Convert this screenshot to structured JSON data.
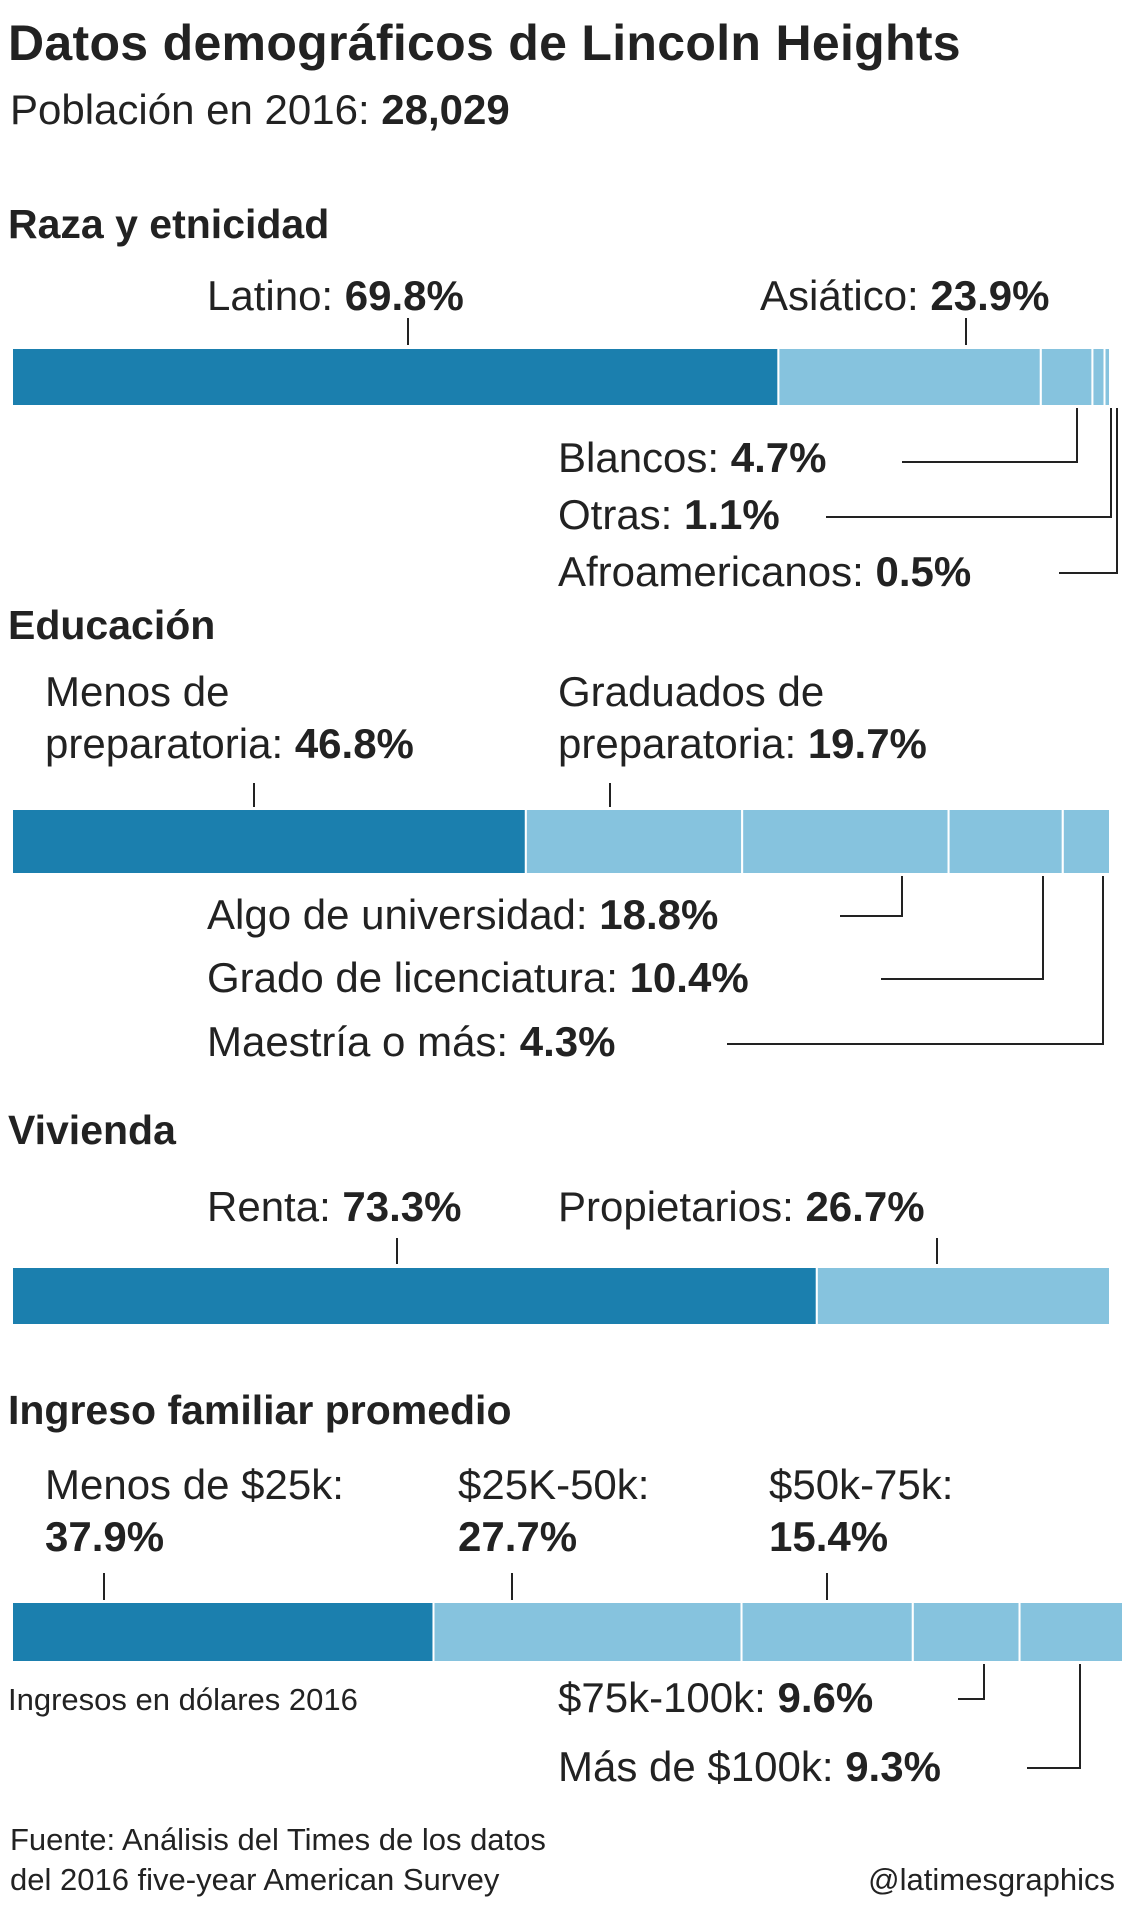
{
  "header": {
    "title": "Datos demográficos de Lincoln Heights",
    "population_label": "Población en 2016:",
    "population_value": "28,029"
  },
  "colors": {
    "primary": "#1b7fae",
    "secondary": "#86c3de",
    "lines": "#222222"
  },
  "chart_data": [
    {
      "type": "bar",
      "stacked": true,
      "title": "Raza y etnicidad",
      "categories": [
        "Latino",
        "Asiático",
        "Blancos",
        "Otras",
        "Afroamericanos"
      ],
      "values": [
        69.8,
        23.9,
        4.7,
        1.1,
        0.5
      ],
      "value_labels": [
        "69.8%",
        "23.9%",
        "4.7%",
        "1.1%",
        "0.5%"
      ]
    },
    {
      "type": "bar",
      "stacked": true,
      "title": "Educación",
      "categories": [
        "Menos de preparatoria",
        "Graduados de preparatoria",
        "Algo de universidad",
        "Grado de licenciatura",
        "Maestría o más"
      ],
      "values": [
        46.8,
        19.7,
        18.8,
        10.4,
        4.3
      ],
      "value_labels": [
        "46.8%",
        "19.7%",
        "18.8%",
        "10.4%",
        "4.3%"
      ]
    },
    {
      "type": "bar",
      "stacked": true,
      "title": "Vivienda",
      "categories": [
        "Renta",
        "Propietarios"
      ],
      "values": [
        73.3,
        26.7
      ],
      "value_labels": [
        "73.3%",
        "26.7%"
      ]
    },
    {
      "type": "bar",
      "stacked": true,
      "title": "Ingreso familiar promedio",
      "note": "Ingresos en dólares 2016",
      "categories": [
        "Menos de $25k",
        "$25K-50k",
        "$50k-75k",
        "$75k-100k",
        "Más de $100k"
      ],
      "values": [
        37.9,
        27.7,
        15.4,
        9.6,
        9.3
      ],
      "value_labels": [
        "37.9%",
        "27.7%",
        "15.4%",
        "9.6%",
        "9.3%"
      ]
    }
  ],
  "labels": {
    "race": {
      "latino": "Latino:",
      "asian": "Asiático:",
      "white": "Blancos:",
      "other": "Otras:",
      "black": "Afroamericanos:"
    },
    "education": {
      "less_hs_1": "Menos de",
      "less_hs_2": "preparatoria:",
      "hs_1": "Graduados de",
      "hs_2": "preparatoria:",
      "some_college": "Algo de universidad:",
      "bachelor": "Grado de licenciatura:",
      "master": "Maestría o más:"
    },
    "housing": {
      "rent": "Renta:",
      "owners": "Propietarios:"
    },
    "income": {
      "lt25": "Menos de $25k:",
      "25_50": "$25K-50k:",
      "50_75": "$50k-75k:",
      "75_100": "$75k-100k:",
      "gt100": "Más de $100k:"
    }
  },
  "footer": {
    "source_line1": "Fuente: Análisis del Times de los datos",
    "source_line2": "del 2016 five-year American Survey",
    "credit": "@latimesgraphics"
  }
}
